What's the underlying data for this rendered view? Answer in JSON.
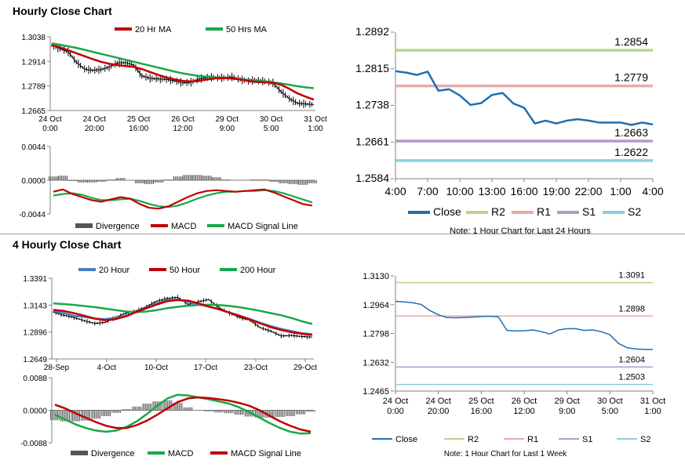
{
  "colors": {
    "ma20": "#c00000",
    "ma50": "#18a84a",
    "ma200": "#18a84a",
    "ma20_blue": "#4a7ec2",
    "close": "#1f6fb2",
    "r2": "#b8d48a",
    "r1": "#e8aaaa",
    "s1": "#b09cc8",
    "s2": "#8ccce0",
    "divergence": "#555555",
    "axis": "#808080"
  },
  "sections": {
    "hourly_title": "Hourly Close Chart",
    "four_hourly_title": "4 Hourly Close Chart"
  },
  "chart_data": [
    {
      "id": "hourly_price",
      "type": "line",
      "title": "Hourly Close Chart",
      "ylim": [
        1.2665,
        1.3038
      ],
      "yticks": [
        "1.3038",
        "1.2914",
        "1.2789",
        "1.2665"
      ],
      "xticks": [
        [
          "24 Oct",
          "0:00"
        ],
        [
          "24 Oct",
          "20:00"
        ],
        [
          "25 Oct",
          "16:00"
        ],
        [
          "26 Oct",
          "12:00"
        ],
        [
          "29 Oct",
          "9:00"
        ],
        [
          "30 Oct",
          "5:00"
        ],
        [
          "31 Oct",
          "1:00"
        ]
      ],
      "legend": [
        "20 Hr MA",
        "50 Hrs MA"
      ],
      "series": [
        {
          "name": "20 Hr MA",
          "values": [
            1.2995,
            1.2985,
            1.297,
            1.2955,
            1.294,
            1.2925,
            1.2912,
            1.2902,
            1.2895,
            1.289,
            1.2886,
            1.2875,
            1.286,
            1.2845,
            1.2832,
            1.2822,
            1.2815,
            1.2812,
            1.2815,
            1.2822,
            1.2828,
            1.283,
            1.2828,
            1.2822,
            1.2815,
            1.281,
            1.2808,
            1.2805,
            1.2795,
            1.2775,
            1.2752,
            1.2735,
            1.272
          ]
        },
        {
          "name": "50 Hrs MA",
          "values": [
            1.3005,
            1.2998,
            1.299,
            1.2982,
            1.2972,
            1.2962,
            1.2952,
            1.2942,
            1.2932,
            1.2922,
            1.2912,
            1.2902,
            1.2892,
            1.2882,
            1.2872,
            1.2862,
            1.2853,
            1.2846,
            1.284,
            1.2836,
            1.2832,
            1.2829,
            1.2826,
            1.2823,
            1.282,
            1.2817,
            1.2813,
            1.2808,
            1.2802,
            1.2795,
            1.2788,
            1.2782,
            1.2778
          ]
        },
        {
          "name": "Close",
          "values": [
            1.2995,
            1.2978,
            1.2962,
            1.291,
            1.2875,
            1.2868,
            1.2872,
            1.2885,
            1.2905,
            1.2908,
            1.2895,
            1.284,
            1.2828,
            1.2825,
            1.2823,
            1.2815,
            1.2805,
            1.2808,
            1.2825,
            1.2833,
            1.2832,
            1.283,
            1.2835,
            1.2822,
            1.2815,
            1.2818,
            1.2812,
            1.2805,
            1.276,
            1.2725,
            1.2702,
            1.2698,
            1.2695
          ]
        }
      ]
    },
    {
      "id": "hourly_macd",
      "type": "line",
      "ylim": [
        -0.0044,
        0.0044
      ],
      "yticks": [
        "0.0044",
        "0.0000",
        "-0.0044"
      ],
      "legend": [
        "Divergence",
        "MACD",
        "MACD Signal Line"
      ],
      "series": [
        {
          "name": "MACD",
          "values": [
            -0.0015,
            -0.0012,
            -0.0018,
            -0.0022,
            -0.0026,
            -0.0028,
            -0.0025,
            -0.0022,
            -0.0024,
            -0.0031,
            -0.0036,
            -0.0037,
            -0.0034,
            -0.0028,
            -0.0022,
            -0.0017,
            -0.0014,
            -0.0013,
            -0.0014,
            -0.0015,
            -0.0014,
            -0.0013,
            -0.0012,
            -0.0016,
            -0.0021,
            -0.0026,
            -0.0031,
            -0.0033
          ]
        },
        {
          "name": "MACD Signal Line",
          "values": [
            -0.002,
            -0.0018,
            -0.0017,
            -0.0019,
            -0.0023,
            -0.0026,
            -0.0026,
            -0.0025,
            -0.0024,
            -0.0027,
            -0.0031,
            -0.0034,
            -0.0035,
            -0.0033,
            -0.0029,
            -0.0024,
            -0.002,
            -0.0017,
            -0.0015,
            -0.0015,
            -0.0014,
            -0.0014,
            -0.0013,
            -0.0014,
            -0.0017,
            -0.0021,
            -0.0025,
            -0.0029
          ]
        },
        {
          "name": "Divergence",
          "values": [
            0.0005,
            0.0006,
            -0.0001,
            -0.0003,
            -0.0003,
            -0.0002,
            0.0001,
            0.0003,
            0.0,
            -0.0004,
            -0.0005,
            -0.0003,
            0.0001,
            0.0005,
            0.0007,
            0.0007,
            0.0006,
            0.0004,
            0.0001,
            0.0,
            0.0,
            0.0001,
            0.0001,
            -0.0002,
            -0.0004,
            -0.0005,
            -0.0006,
            -0.0004
          ]
        }
      ]
    },
    {
      "id": "hourly_24h",
      "type": "line",
      "ylim": [
        1.2584,
        1.2892
      ],
      "yticks": [
        "1.2892",
        "1.2815",
        "1.2738",
        "1.2661",
        "1.2584"
      ],
      "xticks": [
        "4:00",
        "7:00",
        "10:00",
        "13:00",
        "16:00",
        "19:00",
        "22:00",
        "1:00",
        "4:00"
      ],
      "levels": {
        "R2": 1.2854,
        "R1": 1.2779,
        "S1": 1.2663,
        "S2": 1.2622
      },
      "level_labels": {
        "R2": "1.2854",
        "R1": "1.2779",
        "S1": "1.2663",
        "S2": "1.2622"
      },
      "legend": [
        "Close",
        "R2",
        "R1",
        "S1",
        "S2"
      ],
      "note": "Note: 1 Hour Chart for Last 24 Hours",
      "series": [
        {
          "name": "Close",
          "values": [
            1.281,
            1.2807,
            1.2802,
            1.2809,
            1.2769,
            1.2772,
            1.2759,
            1.2739,
            1.2743,
            1.276,
            1.2764,
            1.2742,
            1.2733,
            1.27,
            1.2706,
            1.27,
            1.2706,
            1.2709,
            1.2706,
            1.2702,
            1.2702,
            1.2702,
            1.2697,
            1.2702,
            1.2698
          ]
        }
      ]
    },
    {
      "id": "four_hourly_price",
      "type": "line",
      "title": "4 Hourly Close Chart",
      "ylim": [
        1.2649,
        1.3391
      ],
      "yticks": [
        "1.3391",
        "1.3143",
        "1.2896",
        "1.2649"
      ],
      "xticks": [
        "28-Sep",
        "4-Oct",
        "10-Oct",
        "17-Oct",
        "23-Oct",
        "29-Oct"
      ],
      "legend": [
        "20 Hour",
        "50 Hour",
        "200 Hour"
      ],
      "series": [
        {
          "name": "20 Hour",
          "values": [
            1.309,
            1.307,
            1.3045,
            1.3035,
            1.302,
            1.3015,
            1.3025,
            1.3045,
            1.308,
            1.312,
            1.316,
            1.319,
            1.3195,
            1.3175,
            1.315,
            1.313,
            1.3105,
            1.3075,
            1.3045,
            1.3015,
            1.298,
            1.295,
            1.2925,
            1.2905,
            1.2885,
            1.2875
          ]
        },
        {
          "name": "50 Hour",
          "values": [
            1.31,
            1.309,
            1.307,
            1.3045,
            1.302,
            1.3005,
            1.3015,
            1.304,
            1.308,
            1.3115,
            1.315,
            1.318,
            1.319,
            1.3185,
            1.316,
            1.313,
            1.3105,
            1.3075,
            1.3045,
            1.301,
            1.2975,
            1.294,
            1.2915,
            1.2895,
            1.288,
            1.287
          ]
        },
        {
          "name": "200 Hour",
          "values": [
            1.316,
            1.3153,
            1.3145,
            1.3135,
            1.3125,
            1.3112,
            1.3098,
            1.3085,
            1.308,
            1.3085,
            1.3098,
            1.3115,
            1.3128,
            1.3138,
            1.3145,
            1.3147,
            1.3144,
            1.3136,
            1.3124,
            1.3108,
            1.309,
            1.307,
            1.305,
            1.3025,
            1.2995,
            1.297
          ]
        },
        {
          "name": "Close",
          "values": [
            1.308,
            1.305,
            1.303,
            1.3,
            1.2975,
            1.2985,
            1.303,
            1.307,
            1.309,
            1.313,
            1.318,
            1.3205,
            1.3215,
            1.315,
            1.3175,
            1.3195,
            1.312,
            1.307,
            1.303,
            1.3005,
            1.2935,
            1.2905,
            1.286,
            1.2865,
            1.2855,
            1.285
          ]
        }
      ]
    },
    {
      "id": "four_hourly_macd",
      "type": "line",
      "ylim": [
        -0.0088,
        0.0088
      ],
      "yticks": [
        "0.0088",
        "0.0000",
        "-0.0088"
      ],
      "legend": [
        "Divergence",
        "MACD",
        "MACD Signal Line"
      ],
      "series": [
        {
          "name": "MACD",
          "values": [
            -0.0012,
            -0.0025,
            -0.0038,
            -0.0048,
            -0.0055,
            -0.0058,
            -0.0055,
            -0.0045,
            -0.003,
            -0.001,
            0.0012,
            0.0032,
            0.0042,
            0.004,
            0.0035,
            0.003,
            0.0024,
            0.0018,
            0.0008,
            -0.0005,
            -0.002,
            -0.0035,
            -0.0048,
            -0.0058,
            -0.0063,
            -0.0062
          ]
        },
        {
          "name": "MACD Signal Line",
          "values": [
            0.0015,
            0.0005,
            -0.0008,
            -0.002,
            -0.0032,
            -0.0042,
            -0.0048,
            -0.0048,
            -0.004,
            -0.0028,
            -0.0012,
            0.0005,
            0.0022,
            0.0032,
            0.0035,
            0.0033,
            0.003,
            0.0026,
            0.002,
            0.0012,
            0.0,
            -0.0015,
            -0.003,
            -0.0042,
            -0.0052,
            -0.0058
          ]
        },
        {
          "name": "Divergence",
          "values": [
            -0.0027,
            -0.003,
            -0.003,
            -0.0028,
            -0.0023,
            -0.0016,
            -0.0007,
            0.0003,
            0.001,
            0.0018,
            0.0024,
            0.0027,
            0.002,
            0.0008,
            0.0,
            -0.0003,
            -0.0006,
            -0.0008,
            -0.0012,
            -0.0017,
            -0.002,
            -0.002,
            -0.0018,
            -0.0016,
            -0.0011,
            -0.0004
          ]
        }
      ]
    },
    {
      "id": "four_hourly_week",
      "type": "line",
      "ylim": [
        1.2465,
        1.313
      ],
      "yticks": [
        "1.3130",
        "1.2964",
        "1.2798",
        "1.2632",
        "1.2465"
      ],
      "xticks": [
        [
          "24 Oct",
          "0:00"
        ],
        [
          "24 Oct",
          "20:00"
        ],
        [
          "25 Oct",
          "16:00"
        ],
        [
          "26 Oct",
          "12:00"
        ],
        [
          "29 Oct",
          "9:00"
        ],
        [
          "30 Oct",
          "5:00"
        ],
        [
          "31 Oct",
          "1:00"
        ]
      ],
      "levels": {
        "R2": 1.3091,
        "R1": 1.2898,
        "S1": 1.2604,
        "S2": 1.2503
      },
      "level_labels": {
        "R2": "1.3091",
        "R1": "1.2898",
        "S1": "1.2604",
        "S2": "1.2503"
      },
      "legend": [
        "Close",
        "R2",
        "R1",
        "S1",
        "S2"
      ],
      "note": "Note: 1 Hour Chart for Last 1 Week",
      "series": [
        {
          "name": "Close",
          "values": [
            1.2983,
            1.298,
            1.2975,
            1.2965,
            1.293,
            1.2905,
            1.289,
            1.2888,
            1.289,
            1.2892,
            1.2895,
            1.2897,
            1.2893,
            1.2815,
            1.2812,
            1.2813,
            1.2818,
            1.2808,
            1.2795,
            1.2818,
            1.2825,
            1.2825,
            1.2815,
            1.2818,
            1.2808,
            1.279,
            1.274,
            1.2715,
            1.2708,
            1.2705,
            1.2705
          ]
        }
      ]
    }
  ]
}
